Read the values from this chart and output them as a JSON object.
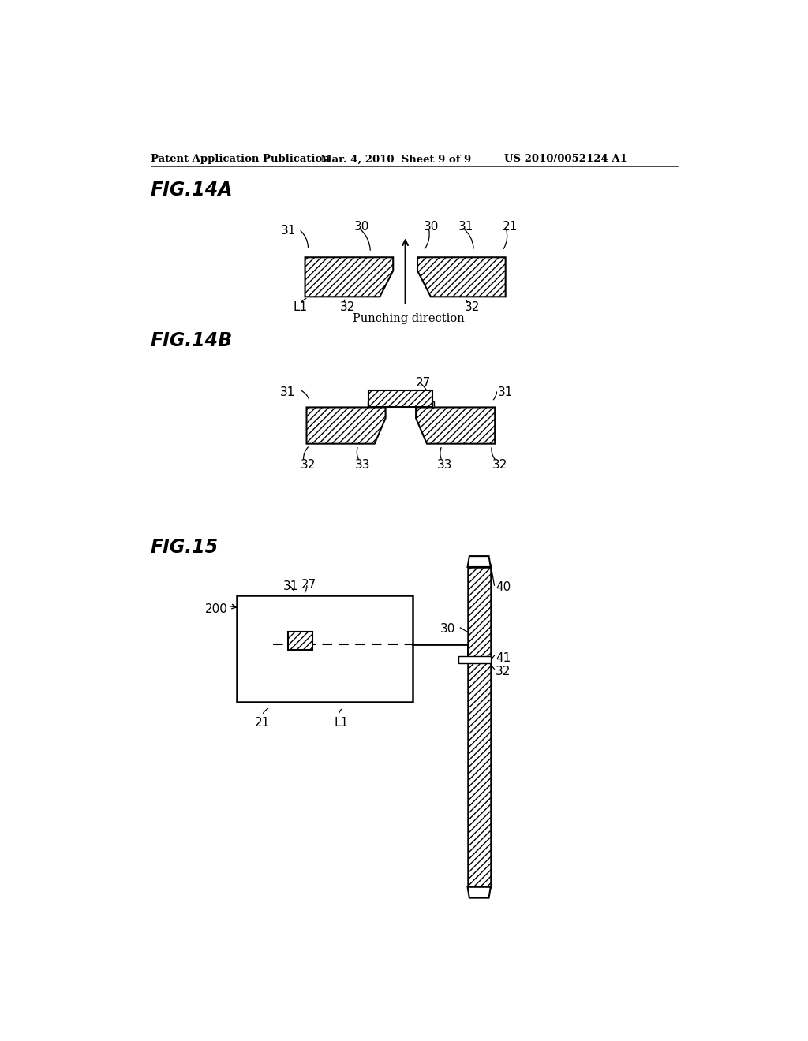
{
  "bg_color": "#ffffff",
  "header_text1": "Patent Application Publication",
  "header_text2": "Mar. 4, 2010  Sheet 9 of 9",
  "header_text3": "US 2010/0052124 A1",
  "fig14a_label": "FIG.14A",
  "fig14b_label": "FIG.14B",
  "fig15_label": "FIG.15",
  "punching_direction": "Punching direction"
}
